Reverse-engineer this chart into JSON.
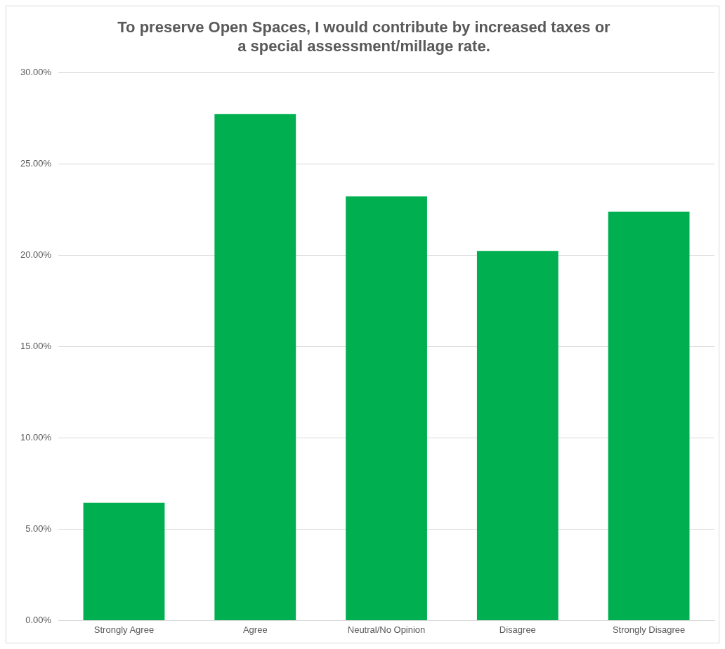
{
  "chart_data": {
    "type": "bar",
    "title": "To preserve Open Spaces, I would contribute by increased taxes or a special assessment/millage rate.",
    "categories": [
      "Strongly Agree",
      "Agree",
      "Neutral/No Opinion",
      "Disagree",
      "Strongly Disagree"
    ],
    "values": [
      6.45,
      27.75,
      23.24,
      20.25,
      22.39
    ],
    "color": "#00b050",
    "ylim": [
      0,
      30
    ],
    "yticks": [
      {
        "value": 0,
        "label": "0.00%"
      },
      {
        "value": 5,
        "label": "5.00%"
      },
      {
        "value": 10,
        "label": "10.00%"
      },
      {
        "value": 15,
        "label": "15.00%"
      },
      {
        "value": 20,
        "label": "20.00%"
      },
      {
        "value": 25,
        "label": "25.00%"
      },
      {
        "value": 30,
        "label": "30.00%"
      }
    ],
    "grid": "y",
    "legend": false
  }
}
